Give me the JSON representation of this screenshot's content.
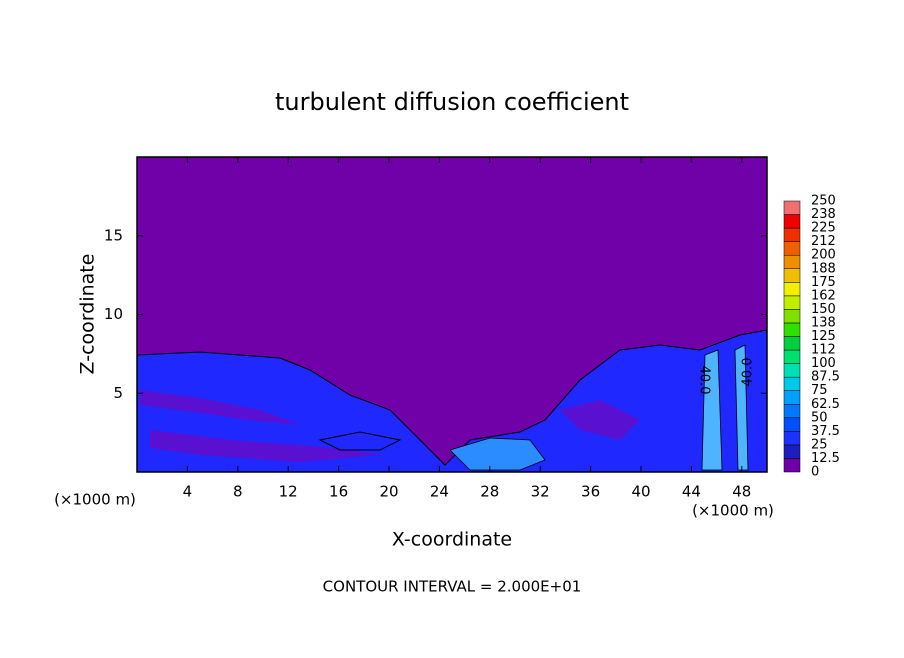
{
  "chart_data": {
    "type": "contour",
    "title": "turbulent diffusion coefficient",
    "x_label": "X-coordinate",
    "y_label": "Z-coordinate",
    "x_unit": "(×1000 m)",
    "y_unit": "(×1000 m)",
    "footnote": "CONTOUR INTERVAL = 2.000E+01",
    "annotations": [
      "40.0",
      "40.0"
    ],
    "xlim": [
      0,
      50
    ],
    "xticks": [
      4,
      8,
      12,
      16,
      20,
      24,
      28,
      32,
      36,
      40,
      44,
      48
    ],
    "ylim": [
      0,
      20
    ],
    "yticks": [
      5,
      10,
      15
    ],
    "levels": [
      0,
      12.5,
      25,
      37.5,
      50,
      62.5,
      75,
      87.5,
      100,
      112,
      125,
      138,
      150,
      162,
      175,
      188,
      200,
      212,
      225,
      238,
      250
    ],
    "colors": [
      "#7000a8",
      "#1e1ec0",
      "#1e32ff",
      "#0050ff",
      "#0078ff",
      "#00a0ff",
      "#00c8e8",
      "#00e0b4",
      "#00e070",
      "#00d040",
      "#30e000",
      "#80e000",
      "#c0f000",
      "#f0f000",
      "#f0c000",
      "#f09000",
      "#f06000",
      "#f03000",
      "#f00000",
      "#f07070"
    ]
  }
}
